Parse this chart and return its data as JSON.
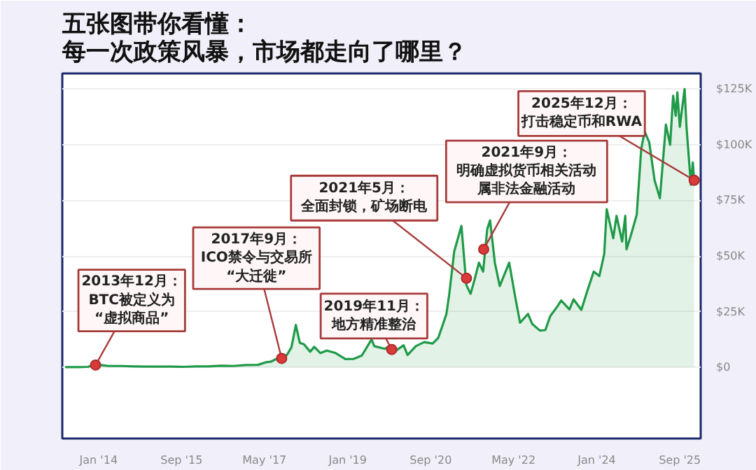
{
  "chart_data": {
    "type": "area",
    "title": "五张图带你看懂：每一次政策风暴，市场都走向了哪里？",
    "color": "#1f9a48",
    "x": [
      "2013-05-01",
      "2013-08-01",
      "2013-10-15",
      "2013-11-30",
      "2014-01-15",
      "2014-03-15",
      "2014-06-15",
      "2014-09-15",
      "2014-12-15",
      "2015-03-15",
      "2015-06-15",
      "2015-09-15",
      "2015-12-15",
      "2016-03-15",
      "2016-06-15",
      "2016-09-15",
      "2016-12-15",
      "2017-03-15",
      "2017-05-15",
      "2017-06-15",
      "2017-08-15",
      "2017-09-15",
      "2017-10-15",
      "2017-11-15",
      "2017-12-17",
      "2018-01-15",
      "2018-02-15",
      "2018-04-01",
      "2018-05-01",
      "2018-06-15",
      "2018-08-01",
      "2018-10-01",
      "2018-12-15",
      "2019-02-15",
      "2019-04-15",
      "2019-06-25",
      "2019-07-15",
      "2019-09-30",
      "2019-10-28",
      "2019-11-15",
      "2019-12-15",
      "2020-02-15",
      "2020-03-15",
      "2020-05-15",
      "2020-07-15",
      "2020-09-15",
      "2020-10-25",
      "2020-11-25",
      "2020-12-25",
      "2021-01-15",
      "2021-02-20",
      "2021-03-15",
      "2021-04-14",
      "2021-05-20",
      "2021-06-20",
      "2021-07-20",
      "2021-08-20",
      "2021-09-20",
      "2021-10-20",
      "2021-11-10",
      "2021-12-15",
      "2022-01-20",
      "2022-03-30",
      "2022-05-15",
      "2022-06-18",
      "2022-08-15",
      "2022-09-15",
      "2022-11-10",
      "2022-12-20",
      "2023-01-25",
      "2023-03-20",
      "2023-04-15",
      "2023-06-15",
      "2023-07-15",
      "2023-09-10",
      "2023-10-25",
      "2023-12-10",
      "2024-01-20",
      "2024-02-25",
      "2024-03-14",
      "2024-05-01",
      "2024-05-25",
      "2024-07-05",
      "2024-07-28",
      "2024-08-06",
      "2024-09-06",
      "2024-10-20",
      "2024-11-22",
      "2024-12-17",
      "2025-01-20",
      "2025-02-28",
      "2025-04-08",
      "2025-05-22",
      "2025-06-22",
      "2025-07-14",
      "2025-08-02",
      "2025-08-14",
      "2025-09-01",
      "2025-10-06",
      "2025-10-20",
      "2025-11-21",
      "2025-12-05",
      "2025-12-15"
    ],
    "values": [
      100,
      100,
      200,
      1100,
      1000,
      600,
      600,
      400,
      300,
      300,
      300,
      200,
      400,
      400,
      700,
      600,
      1000,
      1100,
      2300,
      2500,
      4300,
      3800,
      5800,
      9000,
      19000,
      11000,
      10300,
      7000,
      9200,
      6400,
      7500,
      6500,
      3700,
      3800,
      5300,
      12500,
      9500,
      8300,
      9400,
      8500,
      7200,
      9900,
      5500,
      9500,
      11300,
      10700,
      13100,
      18500,
      24000,
      33000,
      52000,
      57000,
      63500,
      37000,
      33000,
      39500,
      47000,
      43000,
      62000,
      66000,
      47000,
      36500,
      47000,
      31000,
      20000,
      24000,
      19500,
      16500,
      16700,
      23000,
      27500,
      30000,
      26000,
      30500,
      25800,
      34500,
      43000,
      41000,
      51000,
      71000,
      58000,
      68000,
      56500,
      68000,
      53000,
      59000,
      68500,
      98000,
      106000,
      101000,
      84000,
      76000,
      109000,
      100000,
      122000,
      113000,
      123500,
      108000,
      125000,
      108000,
      82000,
      92000,
      84000
    ],
    "xlim": [
      "2013-04-10",
      "2026-02-01"
    ],
    "ylim": [
      -32000,
      132000
    ],
    "xticks": [
      {
        "value": "2014-01-01",
        "label": "Jan '14"
      },
      {
        "value": "2015-09-01",
        "label": "Sep '15"
      },
      {
        "value": "2017-05-01",
        "label": "May '17"
      },
      {
        "value": "2019-01-01",
        "label": "Jan '19"
      },
      {
        "value": "2020-09-01",
        "label": "Sep '20"
      },
      {
        "value": "2022-05-01",
        "label": "May '22"
      },
      {
        "value": "2024-01-01",
        "label": "Jan '24"
      },
      {
        "value": "2025-09-01",
        "label": "Sep '25"
      }
    ],
    "yticks": [
      {
        "value": 0,
        "label": "$0"
      },
      {
        "value": 25000,
        "label": "$25K"
      },
      {
        "value": 50000,
        "label": "$50K"
      },
      {
        "value": 75000,
        "label": "$75K"
      },
      {
        "value": 100000,
        "label": "$100K"
      },
      {
        "value": 125000,
        "label": "$125K"
      }
    ],
    "grid": "y",
    "annotations": [
      {
        "text": "2013年12月：BTC被定义为“虚拟商品”",
        "x": "2013-12-10",
        "y": 1000
      },
      {
        "text": "2017年9月：ICO禁令与交易所“大迁徙”",
        "x": "2017-09-04",
        "y": 4000
      },
      {
        "text": "2019年11月：地方精准整治",
        "x": "2019-11-20",
        "y": 8000
      },
      {
        "text": "2021年5月：全面封锁，矿场断电",
        "x": "2021-05-21",
        "y": 40000
      },
      {
        "text": "2021年9月：明确虚拟货币相关活动属非法金融活动",
        "x": "2021-09-24",
        "y": 53000
      },
      {
        "text": "2025年12月：打击稳定币和RWA",
        "x": "2025-12-15",
        "y": 84000
      }
    ]
  }
}
